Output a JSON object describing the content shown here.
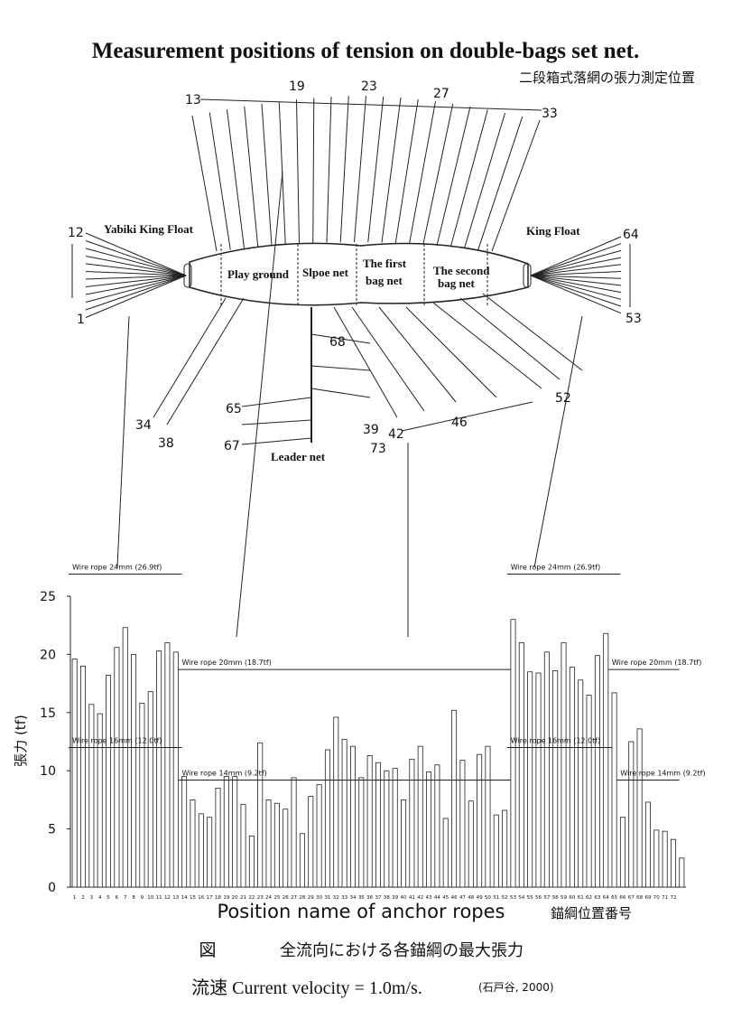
{
  "header": {
    "title": "Measurement positions of tension on double-bags set net.",
    "subtitle": "二段箱式落網の張力測定位置"
  },
  "diagram": {
    "labels": [
      "13",
      "19",
      "23",
      "27",
      "33",
      "12",
      "1",
      "64",
      "53",
      "34",
      "38",
      "65",
      "67",
      "68",
      "39",
      "73",
      "42",
      "46",
      "52",
      "Yabiki King Float",
      "King Float",
      "Play ground",
      "Slpoe net",
      "The first",
      "bag net",
      "The second",
      "bag net",
      "Leader net"
    ]
  },
  "chart_data": {
    "type": "bar",
    "categories": [
      "1",
      "2",
      "3",
      "4",
      "5",
      "6",
      "7",
      "8",
      "9",
      "10",
      "11",
      "12",
      "13",
      "14",
      "15",
      "16",
      "17",
      "18",
      "19",
      "20",
      "21",
      "22",
      "23",
      "24",
      "25",
      "26",
      "27",
      "28",
      "29",
      "30",
      "31",
      "32",
      "33",
      "34",
      "35",
      "36",
      "37",
      "38",
      "39",
      "40",
      "41",
      "42",
      "43",
      "44",
      "45",
      "46",
      "47",
      "48",
      "49",
      "50",
      "51",
      "52",
      "53",
      "54",
      "55",
      "56",
      "57",
      "58",
      "59",
      "60",
      "61",
      "62",
      "63",
      "64",
      "65",
      "66",
      "67",
      "68",
      "69",
      "70",
      "71",
      "72",
      null
    ],
    "values": [
      19.6,
      19.0,
      15.7,
      14.9,
      18.2,
      20.6,
      22.3,
      20.0,
      15.8,
      16.8,
      20.3,
      21.0,
      20.2,
      9.5,
      7.5,
      6.3,
      6.0,
      8.5,
      9.5,
      9.5,
      7.1,
      4.4,
      12.4,
      7.5,
      7.2,
      6.7,
      9.4,
      4.6,
      7.8,
      8.8,
      11.8,
      14.6,
      12.7,
      12.1,
      9.4,
      11.3,
      10.7,
      10.0,
      10.2,
      7.5,
      11.0,
      12.1,
      9.9,
      10.5,
      5.9,
      15.2,
      10.9,
      7.4,
      11.4,
      12.1,
      6.2,
      6.6,
      23.0,
      21.0,
      18.5,
      18.4,
      20.2,
      18.6,
      21.0,
      18.9,
      17.8,
      16.5,
      19.9,
      21.8,
      16.7,
      6.0,
      12.5,
      13.6,
      7.3,
      4.9,
      4.8,
      4.1,
      2.5
    ],
    "color": "#ffffff",
    "ylim": [
      0,
      25
    ],
    "yticks": [
      0,
      5,
      10,
      15,
      20,
      25
    ],
    "ylabel": "張力 (tf)",
    "xlabel": "Position name of anchor ropes",
    "xlabel2": "錨綱位置番号",
    "reference_lines": [
      {
        "label": "Wire rope 24mm (26.9tf)",
        "value": 26.9,
        "span": [
          "1",
          "13"
        ]
      },
      {
        "label": "Wire rope 24mm (26.9tf)",
        "value": 26.9,
        "span": [
          "53",
          "65"
        ]
      },
      {
        "label": "Wire rope 20mm (18.7tf)",
        "value": 18.7,
        "span": [
          "14",
          "52"
        ]
      },
      {
        "label": "Wire rope 20mm (18.7tf)",
        "value": 18.7,
        "span": [
          "65",
          "72"
        ]
      },
      {
        "label": "Wire rope 16mm (12.0tf)",
        "value": 12.0,
        "span": [
          "1",
          "13"
        ]
      },
      {
        "label": "Wire rope 16mm (12.0tf)",
        "value": 12.0,
        "span": [
          "53",
          "64"
        ]
      },
      {
        "label": "Wire rope 14mm (9.2tf)",
        "value": 9.2,
        "span": [
          "14",
          "52"
        ]
      },
      {
        "label": "Wire rope 14mm (9.2tf)",
        "value": 9.2,
        "span": [
          "66",
          "72"
        ]
      }
    ]
  },
  "caption": {
    "figure": "図",
    "text": "全流向における各錨綱の最大張力",
    "condition": "流速 Current velocity = 1.0m/s.",
    "source": "(石戸谷, 2000)"
  }
}
